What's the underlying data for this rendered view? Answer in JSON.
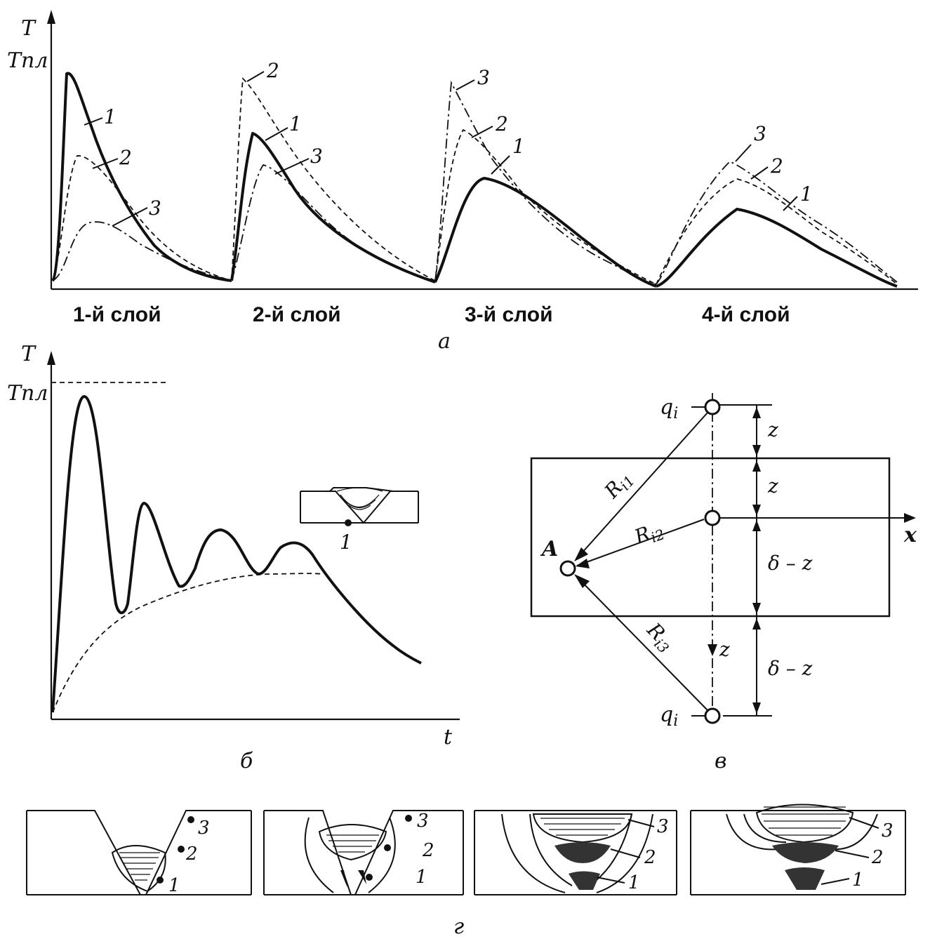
{
  "panel_a": {
    "y_axis_label": "T",
    "melt_label": "Tпл",
    "curve_labels": [
      "1",
      "2",
      "3"
    ],
    "layer_labels": [
      "1-й слой",
      "2-й слой",
      "3-й слой",
      "4-й слой"
    ],
    "caption": "а"
  },
  "panel_b": {
    "y_axis_label": "T",
    "melt_label": "Tпл",
    "x_axis_label": "t",
    "inset_point_label": "1",
    "caption": "б"
  },
  "panel_v": {
    "source_top": "q",
    "source_bottom": "q",
    "source_subscript": "i",
    "point_label": "A",
    "r1": "R",
    "r1_sub": "i1",
    "r2": "R",
    "r2_sub": "i2",
    "r3": "R",
    "r3_sub": "i3",
    "z": "z",
    "delta_minus_z": "δ – z",
    "x_axis_label": "x",
    "caption": "в"
  },
  "panel_g": {
    "point_labels": [
      "1",
      "2",
      "3"
    ],
    "caption": "г"
  }
}
